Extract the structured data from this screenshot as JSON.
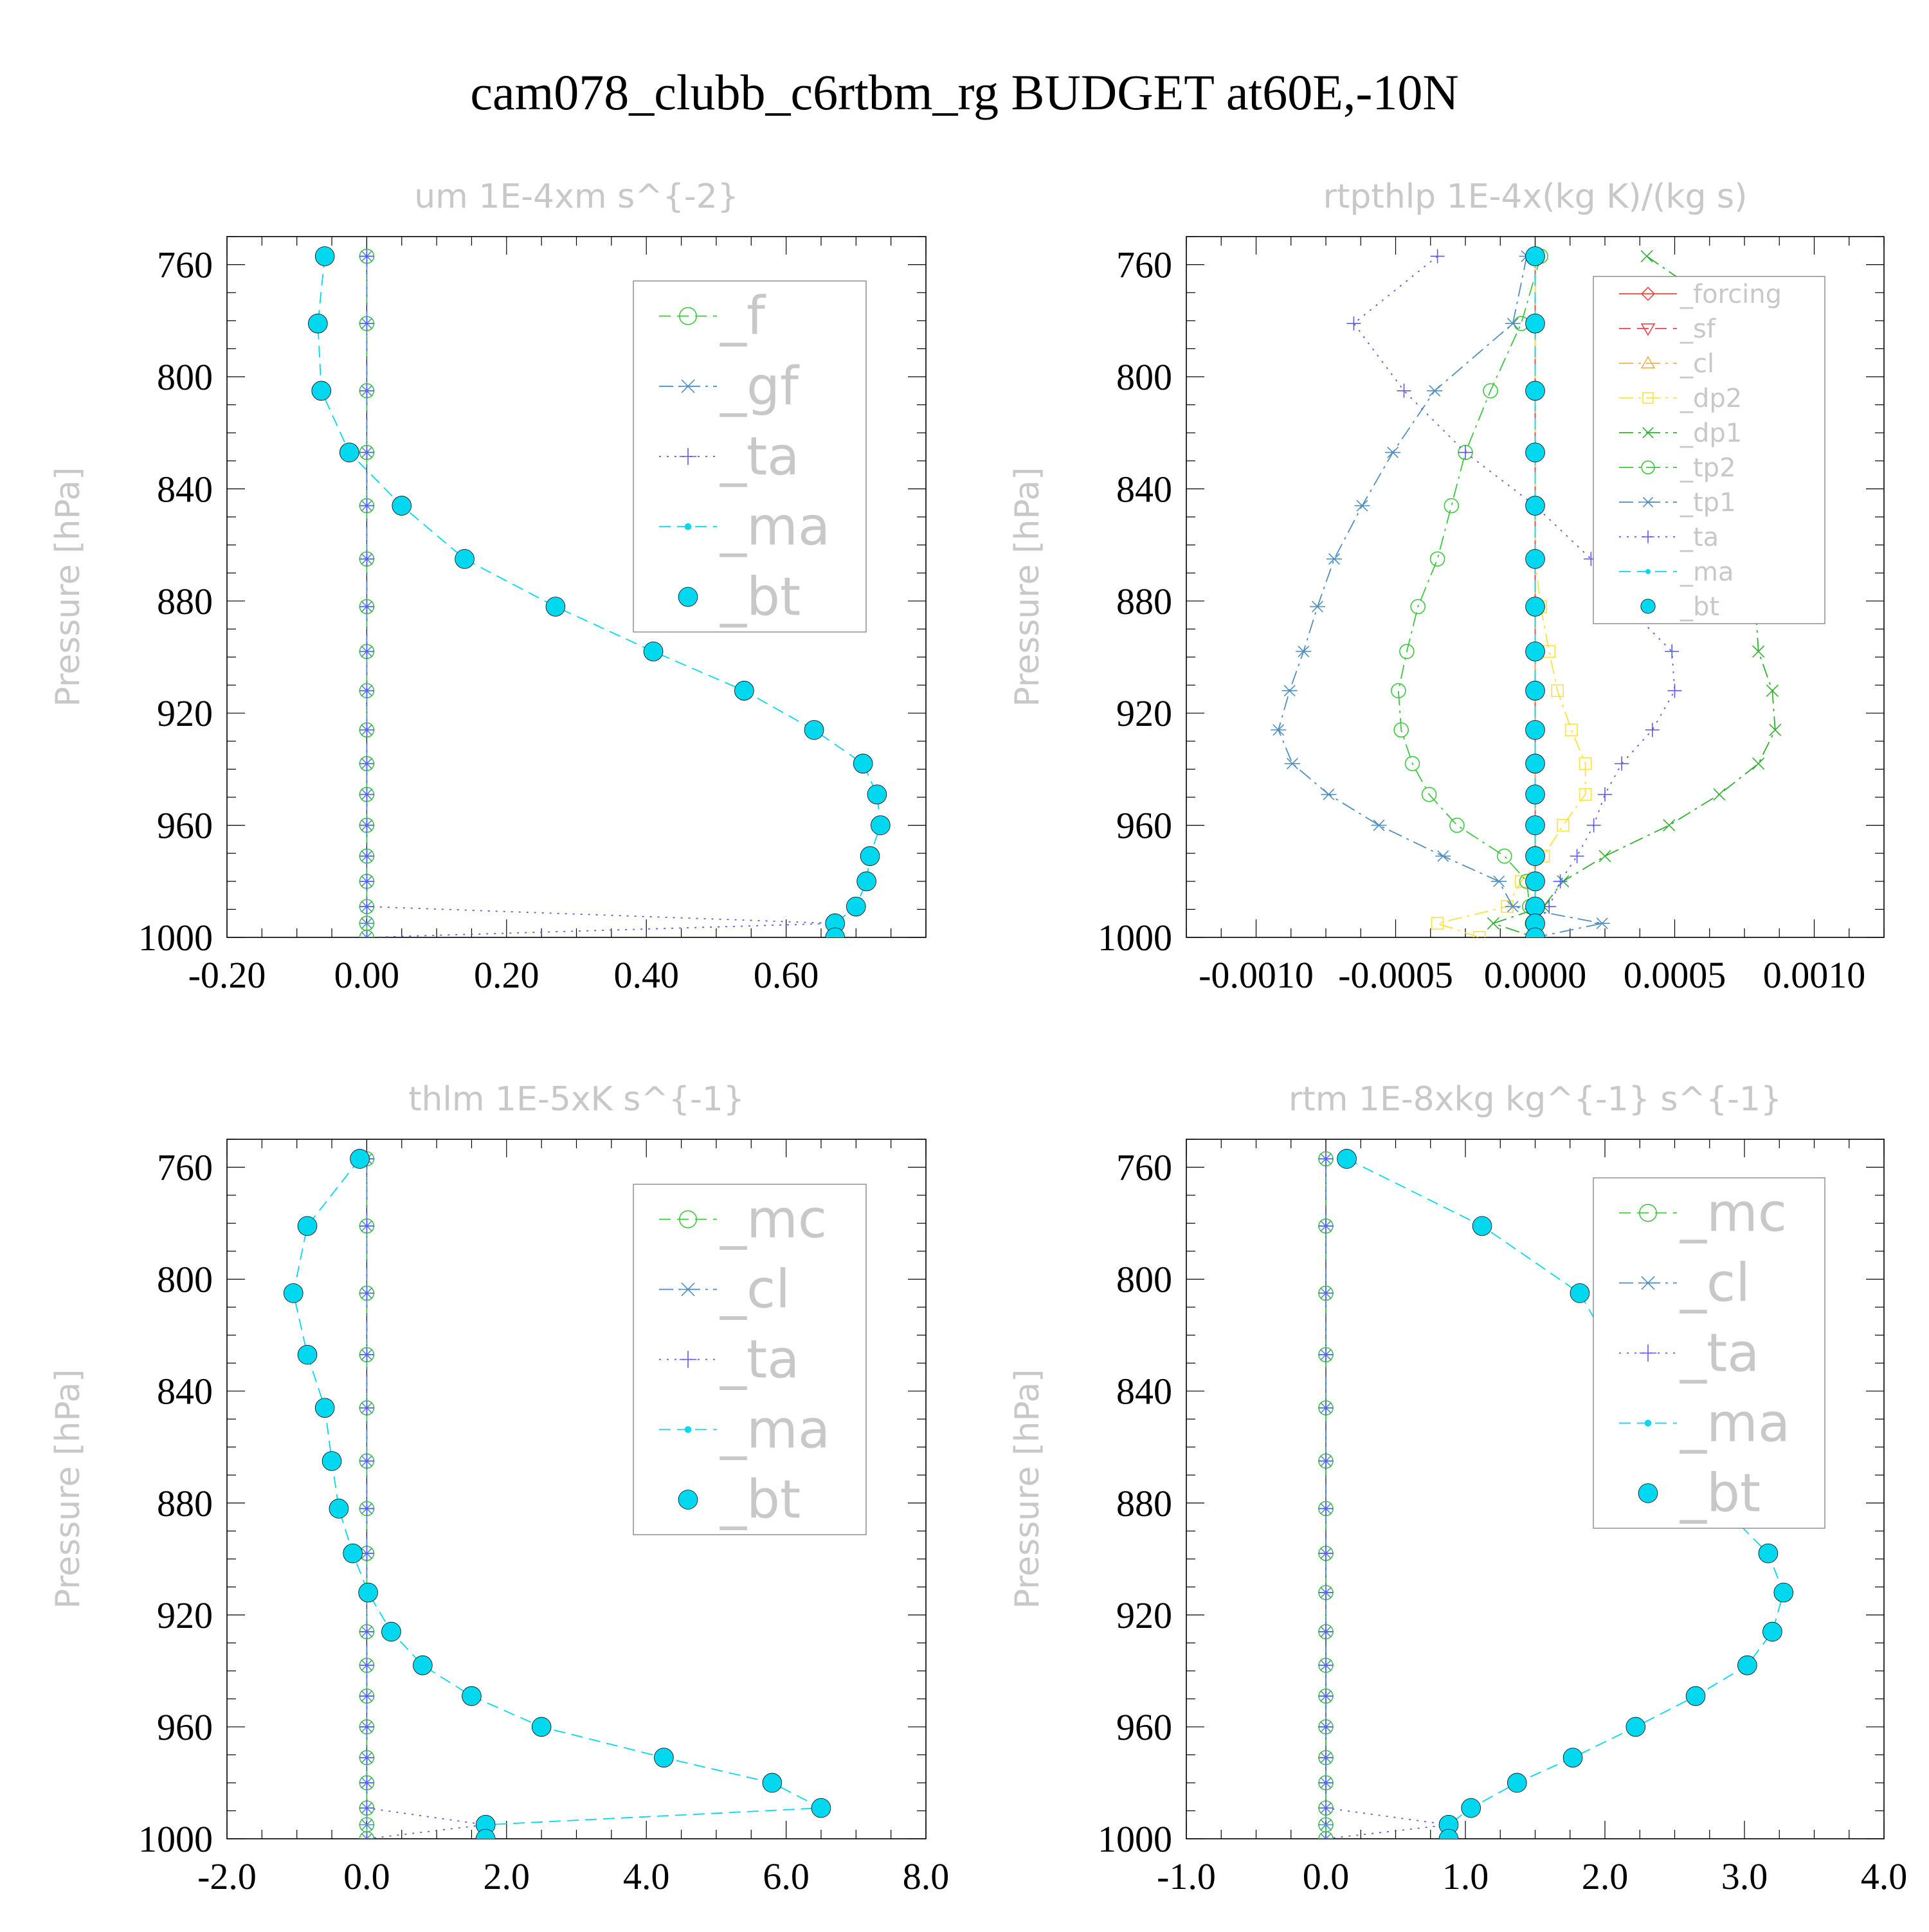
{
  "title": "cam078_clubb_c6rtbm_rg  BUDGET at60E,-10N",
  "colors": {
    "text": "#000000",
    "faint": "#c8c8c8",
    "frame": "#000000",
    "green": "#3cc83c",
    "steel": "#4f8fbf",
    "blue": "#5a5af0",
    "cyan": "#00d8f0",
    "red": "#f04040",
    "orange": "#f0b050",
    "yellow": "#ffe040",
    "darkgreen": "#30b030"
  },
  "chart_data": [
    {
      "type": "line",
      "title": "um  1E-4xm s^{-2}",
      "ylabel": "Pressure [hPa]",
      "ylim": [
        1000,
        750
      ],
      "xlim": [
        -0.2,
        0.8
      ],
      "xticks": [
        "-0.20",
        "0.00",
        "0.20",
        "0.40",
        "0.60"
      ],
      "xtick_values": [
        -0.2,
        0.0,
        0.2,
        0.4,
        0.6
      ],
      "yticks": [
        "760",
        "800",
        "840",
        "880",
        "920",
        "960",
        "1000"
      ],
      "ytick_values": [
        760,
        800,
        840,
        880,
        920,
        960,
        1000
      ],
      "pressure": [
        757,
        781,
        805,
        827,
        846,
        865,
        882,
        898,
        912,
        926,
        938,
        949,
        960,
        971,
        980,
        989,
        995,
        1000
      ],
      "series": [
        {
          "name": "_f",
          "color": "#3cc83c",
          "marker": "circle",
          "dash": "dash",
          "values": [
            0,
            0,
            0,
            0,
            0,
            0,
            0,
            0,
            0,
            0,
            0,
            0,
            0,
            0,
            0,
            0,
            0,
            0
          ]
        },
        {
          "name": "_gf",
          "color": "#4f8fbf",
          "marker": "star",
          "dash": "dashdot",
          "values": [
            0,
            0,
            0,
            0,
            0,
            0,
            0,
            0,
            0,
            0,
            0,
            0,
            0,
            0,
            0,
            0,
            0,
            0
          ]
        },
        {
          "name": "_ta",
          "color": "#5a5af0",
          "marker": "plus",
          "dash": "dot",
          "values": [
            0,
            0,
            0,
            0,
            0,
            0,
            0,
            0,
            0,
            0,
            0,
            0,
            0,
            0,
            0,
            0,
            0.67,
            0
          ]
        },
        {
          "name": "_ma",
          "color": "#00d8f0",
          "marker": "dot",
          "dash": "dash",
          "values": [
            -0.06,
            -0.07,
            -0.065,
            -0.025,
            0.05,
            0.14,
            0.27,
            0.41,
            0.54,
            0.64,
            0.71,
            0.73,
            0.735,
            0.72,
            0.715,
            0.7,
            0.67,
            0.67
          ]
        },
        {
          "name": "_bt",
          "color": "#00d8f0",
          "marker": "filled",
          "dash": "none",
          "values": [
            -0.06,
            -0.07,
            -0.065,
            -0.025,
            0.05,
            0.14,
            0.27,
            0.41,
            0.54,
            0.64,
            0.71,
            0.73,
            0.735,
            0.72,
            0.715,
            0.7,
            0.67,
            0.67
          ]
        }
      ]
    },
    {
      "type": "line",
      "title": "rtpthlp  1E-4x(kg K)/(kg s)",
      "ylabel": "Pressure [hPa]",
      "ylim": [
        1000,
        750
      ],
      "xlim": [
        -0.00125,
        0.00125
      ],
      "xticks": [
        "-0.0010",
        "-0.0005",
        "0.0000",
        "0.0005",
        "0.0010"
      ],
      "xtick_values": [
        -0.001,
        -0.0005,
        0.0,
        0.0005,
        0.001
      ],
      "yticks": [
        "760",
        "800",
        "840",
        "880",
        "920",
        "960",
        "1000"
      ],
      "ytick_values": [
        760,
        800,
        840,
        880,
        920,
        960,
        1000
      ],
      "pressure": [
        757,
        781,
        805,
        827,
        846,
        865,
        882,
        898,
        912,
        926,
        938,
        949,
        960,
        971,
        980,
        989,
        995,
        1000
      ],
      "series": [
        {
          "name": "_forcing",
          "color": "#f04040",
          "marker": "diamond",
          "dash": "solid",
          "values": [
            0,
            0,
            0,
            0,
            0,
            0,
            0,
            0,
            0,
            0,
            0,
            0,
            0,
            0,
            0,
            0,
            0,
            0
          ]
        },
        {
          "name": "_sf",
          "color": "#f04040",
          "marker": "tri-down",
          "dash": "dash",
          "values": [
            0,
            0,
            0,
            0,
            0,
            0,
            0,
            0,
            0,
            0,
            0,
            0,
            0,
            0,
            0,
            0,
            0,
            0
          ]
        },
        {
          "name": "_cl",
          "color": "#f0b050",
          "marker": "tri-up",
          "dash": "dashdot",
          "values": [
            0,
            0,
            0,
            0,
            0,
            0,
            0,
            0,
            0,
            0,
            0,
            0,
            0,
            0,
            0,
            0,
            0,
            0
          ]
        },
        {
          "name": "_dp2",
          "color": "#ffe040",
          "marker": "square",
          "dash": "dashdot",
          "values": [
            0,
            0,
            0,
            0,
            0,
            0,
            2e-05,
            5e-05,
            8e-05,
            0.00013,
            0.00018,
            0.00018,
            0.0001,
            3e-05,
            -5e-05,
            -0.0001,
            -0.00035,
            -0.0002
          ]
        },
        {
          "name": "_dp1",
          "color": "#30b030",
          "marker": "cross",
          "dash": "dashdot",
          "values": [
            0.0004,
            0.00075,
            0.00095,
            0.00092,
            0.00085,
            0.0008,
            0.00079,
            0.0008,
            0.00085,
            0.00086,
            0.0008,
            0.00066,
            0.00048,
            0.00025,
            0.0001,
            3e-05,
            -0.00015,
            0
          ]
        },
        {
          "name": "_tp2",
          "color": "#3cc83c",
          "marker": "circle",
          "dash": "dashdot",
          "values": [
            2e-05,
            -5e-05,
            -0.00016,
            -0.00025,
            -0.0003,
            -0.00035,
            -0.00042,
            -0.00046,
            -0.00049,
            -0.00048,
            -0.00044,
            -0.00038,
            -0.00028,
            -0.00011,
            -3e-05,
            -2e-05,
            -1e-05,
            0
          ]
        },
        {
          "name": "_tp1",
          "color": "#4f8fbf",
          "marker": "star",
          "dash": "dashdot",
          "values": [
            -3e-05,
            -8e-05,
            -0.00036,
            -0.00051,
            -0.00062,
            -0.00072,
            -0.00078,
            -0.00083,
            -0.00088,
            -0.00092,
            -0.00087,
            -0.00074,
            -0.00056,
            -0.00033,
            -0.00013,
            -8e-05,
            0.00024,
            0
          ]
        },
        {
          "name": "_ta",
          "color": "#5a5af0",
          "marker": "plus",
          "dash": "dot",
          "values": [
            -0.00035,
            -0.00065,
            -0.00047,
            -0.00025,
            0,
            0.0002,
            0.00033,
            0.00049,
            0.0005,
            0.00042,
            0.00031,
            0.00025,
            0.00021,
            0.00015,
            9e-05,
            5e-05,
            1e-05,
            0
          ]
        },
        {
          "name": "_ma",
          "color": "#00d8f0",
          "marker": "dot",
          "dash": "dash",
          "values": [
            0,
            0,
            0,
            0,
            0,
            0,
            0,
            0,
            0,
            0,
            0,
            0,
            0,
            0,
            0,
            0,
            0,
            0
          ]
        },
        {
          "name": "_bt",
          "color": "#00d8f0",
          "marker": "filled",
          "dash": "none",
          "values": [
            0,
            0,
            0,
            0,
            0,
            0,
            0,
            0,
            0,
            0,
            0,
            0,
            0,
            0,
            0,
            0,
            0,
            0
          ]
        }
      ]
    },
    {
      "type": "line",
      "title": "thlm  1E-5xK s^{-1}",
      "ylabel": "Pressure [hPa]",
      "ylim": [
        1000,
        750
      ],
      "xlim": [
        -2.0,
        8.0
      ],
      "xticks": [
        "-2.0",
        "0.0",
        "2.0",
        "4.0",
        "6.0",
        "8.0"
      ],
      "xtick_values": [
        -2.0,
        0.0,
        2.0,
        4.0,
        6.0,
        8.0
      ],
      "yticks": [
        "760",
        "800",
        "840",
        "880",
        "920",
        "960",
        "1000"
      ],
      "ytick_values": [
        760,
        800,
        840,
        880,
        920,
        960,
        1000
      ],
      "pressure": [
        757,
        781,
        805,
        827,
        846,
        865,
        882,
        898,
        912,
        926,
        938,
        949,
        960,
        971,
        980,
        989,
        995,
        1000
      ],
      "series": [
        {
          "name": "_mc",
          "color": "#3cc83c",
          "marker": "circle",
          "dash": "dash",
          "values": [
            0,
            0,
            0,
            0,
            0,
            0,
            0,
            0,
            0,
            0,
            0,
            0,
            0,
            0,
            0,
            0,
            0,
            0
          ]
        },
        {
          "name": "_cl",
          "color": "#4f8fbf",
          "marker": "star",
          "dash": "dashdot",
          "values": [
            0,
            0,
            0,
            0,
            0,
            0,
            0,
            0,
            0,
            0,
            0,
            0,
            0,
            0,
            0,
            0,
            0,
            0
          ]
        },
        {
          "name": "_ta",
          "color": "#5a5af0",
          "marker": "plus",
          "dash": "dot",
          "values": [
            0,
            0,
            0,
            0,
            0,
            0,
            0,
            0,
            0,
            0,
            0,
            0,
            0,
            0,
            0,
            0,
            1.7,
            0
          ]
        },
        {
          "name": "_ma",
          "color": "#00d8f0",
          "marker": "dot",
          "dash": "dash",
          "values": [
            -0.1,
            -0.85,
            -1.05,
            -0.85,
            -0.6,
            -0.5,
            -0.4,
            -0.2,
            0.02,
            0.35,
            0.8,
            1.5,
            2.5,
            4.25,
            5.8,
            6.5,
            1.7,
            1.7
          ]
        },
        {
          "name": "_bt",
          "color": "#00d8f0",
          "marker": "filled",
          "dash": "none",
          "values": [
            -0.1,
            -0.85,
            -1.05,
            -0.85,
            -0.6,
            -0.5,
            -0.4,
            -0.2,
            0.02,
            0.35,
            0.8,
            1.5,
            2.5,
            4.25,
            5.8,
            6.5,
            1.7,
            1.7
          ]
        }
      ]
    },
    {
      "type": "line",
      "title": "rtm  1E-8xkg kg^{-1} s^{-1}",
      "ylabel": "Pressure [hPa]",
      "ylim": [
        1000,
        750
      ],
      "xlim": [
        -1.0,
        4.0
      ],
      "xticks": [
        "-1.0",
        "0.0",
        "1.0",
        "2.0",
        "3.0",
        "4.0"
      ],
      "xtick_values": [
        -1.0,
        0.0,
        1.0,
        2.0,
        3.0,
        4.0
      ],
      "yticks": [
        "760",
        "800",
        "840",
        "880",
        "920",
        "960",
        "1000"
      ],
      "ytick_values": [
        760,
        800,
        840,
        880,
        920,
        960,
        1000
      ],
      "pressure": [
        757,
        781,
        805,
        827,
        846,
        865,
        882,
        898,
        912,
        926,
        938,
        949,
        960,
        971,
        980,
        989,
        995,
        1000
      ],
      "series": [
        {
          "name": "_mc",
          "color": "#3cc83c",
          "marker": "circle",
          "dash": "dash",
          "values": [
            0,
            0,
            0,
            0,
            0,
            0,
            0,
            0,
            0,
            0,
            0,
            0,
            0,
            0,
            0,
            0,
            0,
            0
          ]
        },
        {
          "name": "_cl",
          "color": "#4f8fbf",
          "marker": "star",
          "dash": "dashdot",
          "values": [
            0,
            0,
            0,
            0,
            0,
            0,
            0,
            0,
            0,
            0,
            0,
            0,
            0,
            0,
            0,
            0,
            0,
            0
          ]
        },
        {
          "name": "_ta",
          "color": "#5a5af0",
          "marker": "plus",
          "dash": "dot",
          "values": [
            0,
            0,
            0,
            0,
            0,
            0,
            0,
            0,
            0,
            0,
            0,
            0,
            0,
            0,
            0,
            0,
            0.88,
            0
          ]
        },
        {
          "name": "_ma",
          "color": "#00d8f0",
          "marker": "dot",
          "dash": "dash",
          "values": [
            0.15,
            1.12,
            1.82,
            2.07,
            2.18,
            2.47,
            2.85,
            3.17,
            3.28,
            3.2,
            3.02,
            2.65,
            2.22,
            1.77,
            1.37,
            1.04,
            0.88,
            0.88
          ]
        },
        {
          "name": "_bt",
          "color": "#00d8f0",
          "marker": "filled",
          "dash": "none",
          "values": [
            0.15,
            1.12,
            1.82,
            2.07,
            2.18,
            2.47,
            2.85,
            3.17,
            3.28,
            3.2,
            3.02,
            2.65,
            2.22,
            1.77,
            1.37,
            1.04,
            0.88,
            0.88
          ]
        }
      ]
    }
  ]
}
